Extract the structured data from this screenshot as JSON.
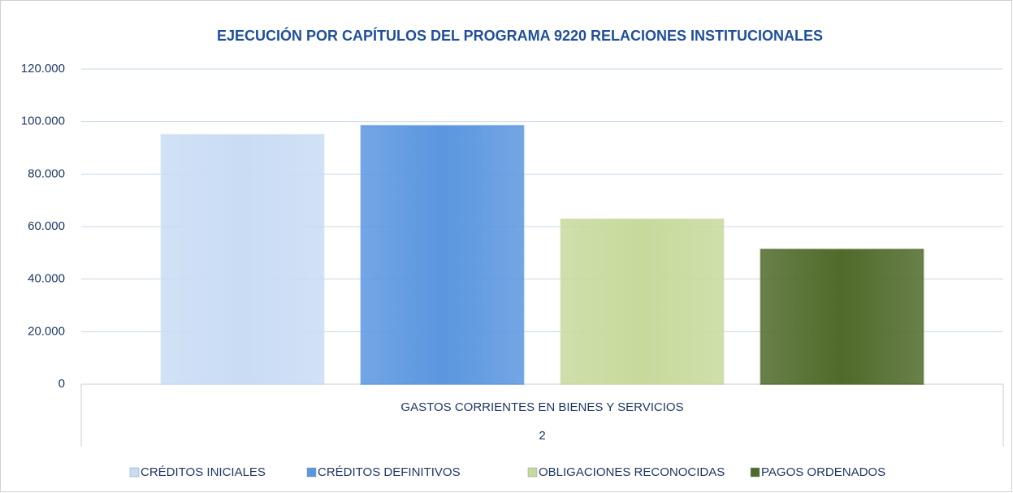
{
  "chart_data": {
    "type": "bar",
    "title": "EJECUCIÓN POR CAPÍTULOS DEL PROGRAMA 9220 RELACIONES INSTITUCIONALES",
    "categories": [
      "GASTOS CORRIENTES EN BIENES Y SERVICIOS"
    ],
    "category_groups": [
      "2"
    ],
    "series": [
      {
        "name": "CRÉDITOS INICIALES",
        "color": "#c9dcf4",
        "values": [
          95000
        ]
      },
      {
        "name": "CRÉDITOS DEFINITIVOS",
        "color": "#5b96df",
        "values": [
          98400
        ]
      },
      {
        "name": "OBLIGACIONES RECONOCIDAS",
        "color": "#c6da9c",
        "values": [
          62800
        ]
      },
      {
        "name": "PAGOS ORDENADOS",
        "color": "#4f6a2a",
        "values": [
          51300
        ]
      }
    ],
    "ylim": [
      0,
      120000
    ],
    "yticks": [
      0,
      {
        "value": 20000,
        "label": "20.000"
      },
      {
        "value": 40000,
        "label": "40.000"
      },
      {
        "value": 60000,
        "label": "60.000"
      },
      {
        "value": 80000,
        "label": "80.000"
      },
      {
        "value": 100000,
        "label": "100.000"
      },
      {
        "value": 120000,
        "label": "120.000"
      }
    ],
    "grid": true,
    "legend": "bottom"
  }
}
